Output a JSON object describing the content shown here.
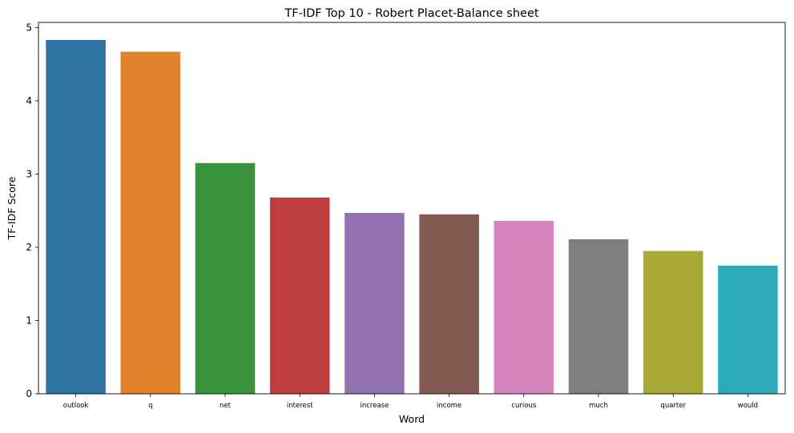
{
  "chart_data": {
    "type": "bar",
    "title": "TF-IDF Top 10 - Robert Placet-Balance sheet",
    "xlabel": "Word",
    "ylabel": "TF-IDF Score",
    "categories": [
      "outlook",
      "q",
      "net",
      "interest",
      "increase",
      "income",
      "curious",
      "much",
      "quarter",
      "would"
    ],
    "values": [
      4.83,
      4.67,
      3.15,
      2.68,
      2.47,
      2.45,
      2.36,
      2.11,
      1.95,
      1.75
    ],
    "colors": [
      "#3274a1",
      "#e1812c",
      "#3a923a",
      "#c03d3e",
      "#9372b2",
      "#845b53",
      "#d684bd",
      "#7f7f7f",
      "#a9aa35",
      "#2eabb8"
    ],
    "yticks": [
      0,
      1,
      2,
      3,
      4,
      5
    ],
    "ylim": [
      0,
      5.07
    ],
    "grid": false,
    "legend": "none"
  }
}
